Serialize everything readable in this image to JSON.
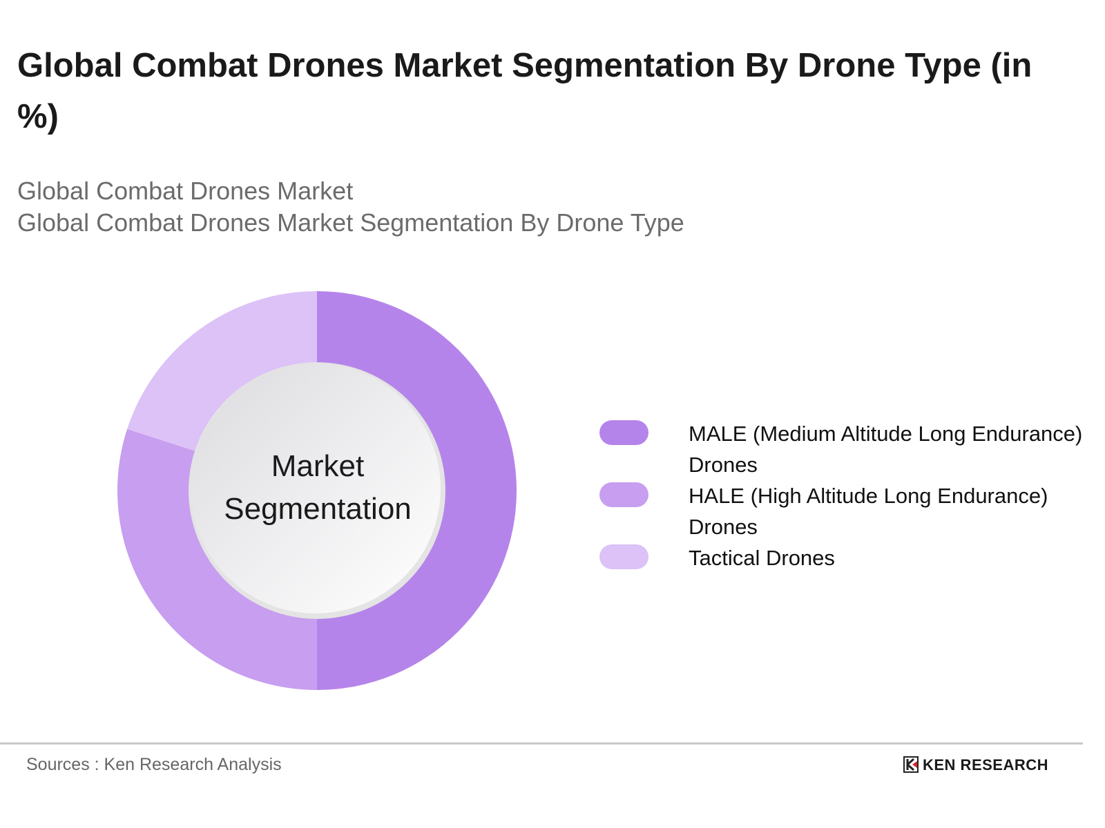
{
  "chart_data": {
    "type": "pie",
    "title": "Global Combat Drones Market Segmentation By Drone Type (in %)",
    "subtitle_lines": [
      "Global Combat Drones Market",
      "Global Combat Drones Market Segmentation By Drone Type"
    ],
    "center_label": [
      "Market",
      "Segmentation"
    ],
    "legend_position": "right",
    "slices": [
      {
        "name": "MALE (Medium Altitude Long Endurance) Drones",
        "value": 50,
        "color": "#b584ea"
      },
      {
        "name": "HALE (High Altitude Long Endurance) Drones",
        "value": 30,
        "color": "#c79ef0"
      },
      {
        "name": "Tactical Drones",
        "value": 20,
        "color": "#dcc2f7"
      }
    ]
  },
  "footer": {
    "source": "Sources : Ken Research Analysis",
    "logo_text": "KEN RESEARCH"
  }
}
